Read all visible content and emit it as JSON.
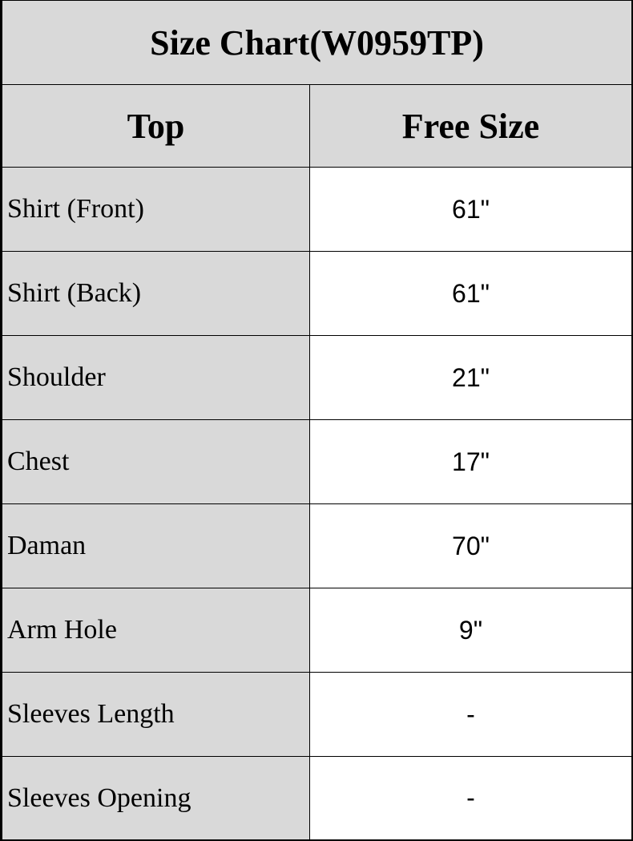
{
  "title": "Size Chart(W0959TP)",
  "header": {
    "col1": "Top",
    "col2": "Free Size"
  },
  "rows": [
    {
      "label": "Shirt (Front)",
      "value": "61\""
    },
    {
      "label": "Shirt (Back)",
      "value": "61\""
    },
    {
      "label": "Shoulder",
      "value": "21\""
    },
    {
      "label": "Chest",
      "value": "17\""
    },
    {
      "label": "Daman",
      "value": "70\""
    },
    {
      "label": "Arm Hole",
      "value": "9\""
    },
    {
      "label": "Sleeves Length",
      "value": "-"
    },
    {
      "label": "Sleeves Opening",
      "value": "-"
    }
  ],
  "colors": {
    "header_bg": "#d9d9d9",
    "border": "#000000"
  }
}
